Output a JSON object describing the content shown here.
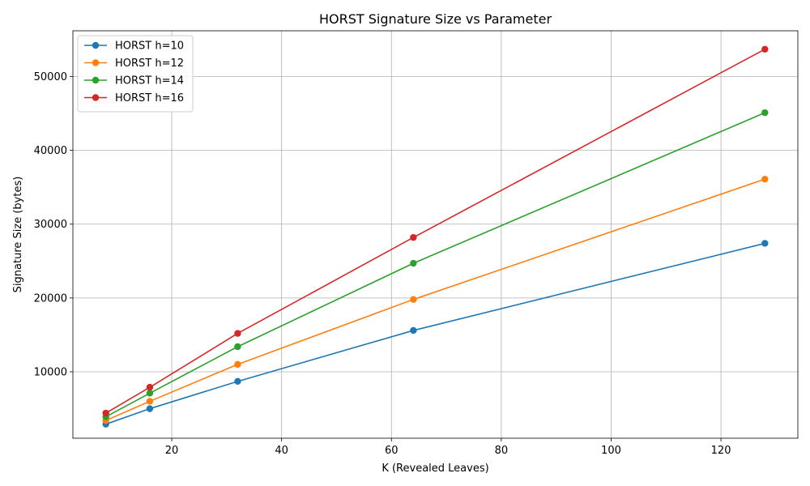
{
  "chart_data": {
    "type": "line",
    "title": "HORST Signature Size vs Parameter",
    "xlabel": "K (Revealed Leaves)",
    "ylabel": "Signature Size (bytes)",
    "x": [
      8,
      16,
      32,
      64,
      128
    ],
    "xlim": [
      2,
      134
    ],
    "ylim": [
      1000,
      56200
    ],
    "xticks": [
      20,
      40,
      60,
      80,
      100,
      120
    ],
    "yticks": [
      10000,
      20000,
      30000,
      40000,
      50000
    ],
    "grid": true,
    "legend_position": "top-left",
    "series": [
      {
        "name": "HORST h=10",
        "color": "#1f77b4",
        "values": [
          2900,
          5000,
          8700,
          15600,
          27400
        ]
      },
      {
        "name": "HORST h=12",
        "color": "#ff7f0e",
        "values": [
          3400,
          6000,
          11000,
          19800,
          36100
        ]
      },
      {
        "name": "HORST h=14",
        "color": "#2ca02c",
        "values": [
          3900,
          7100,
          13400,
          24700,
          45100
        ]
      },
      {
        "name": "HORST h=16",
        "color": "#d62728",
        "values": [
          4400,
          7900,
          15200,
          28200,
          53700
        ]
      }
    ]
  }
}
